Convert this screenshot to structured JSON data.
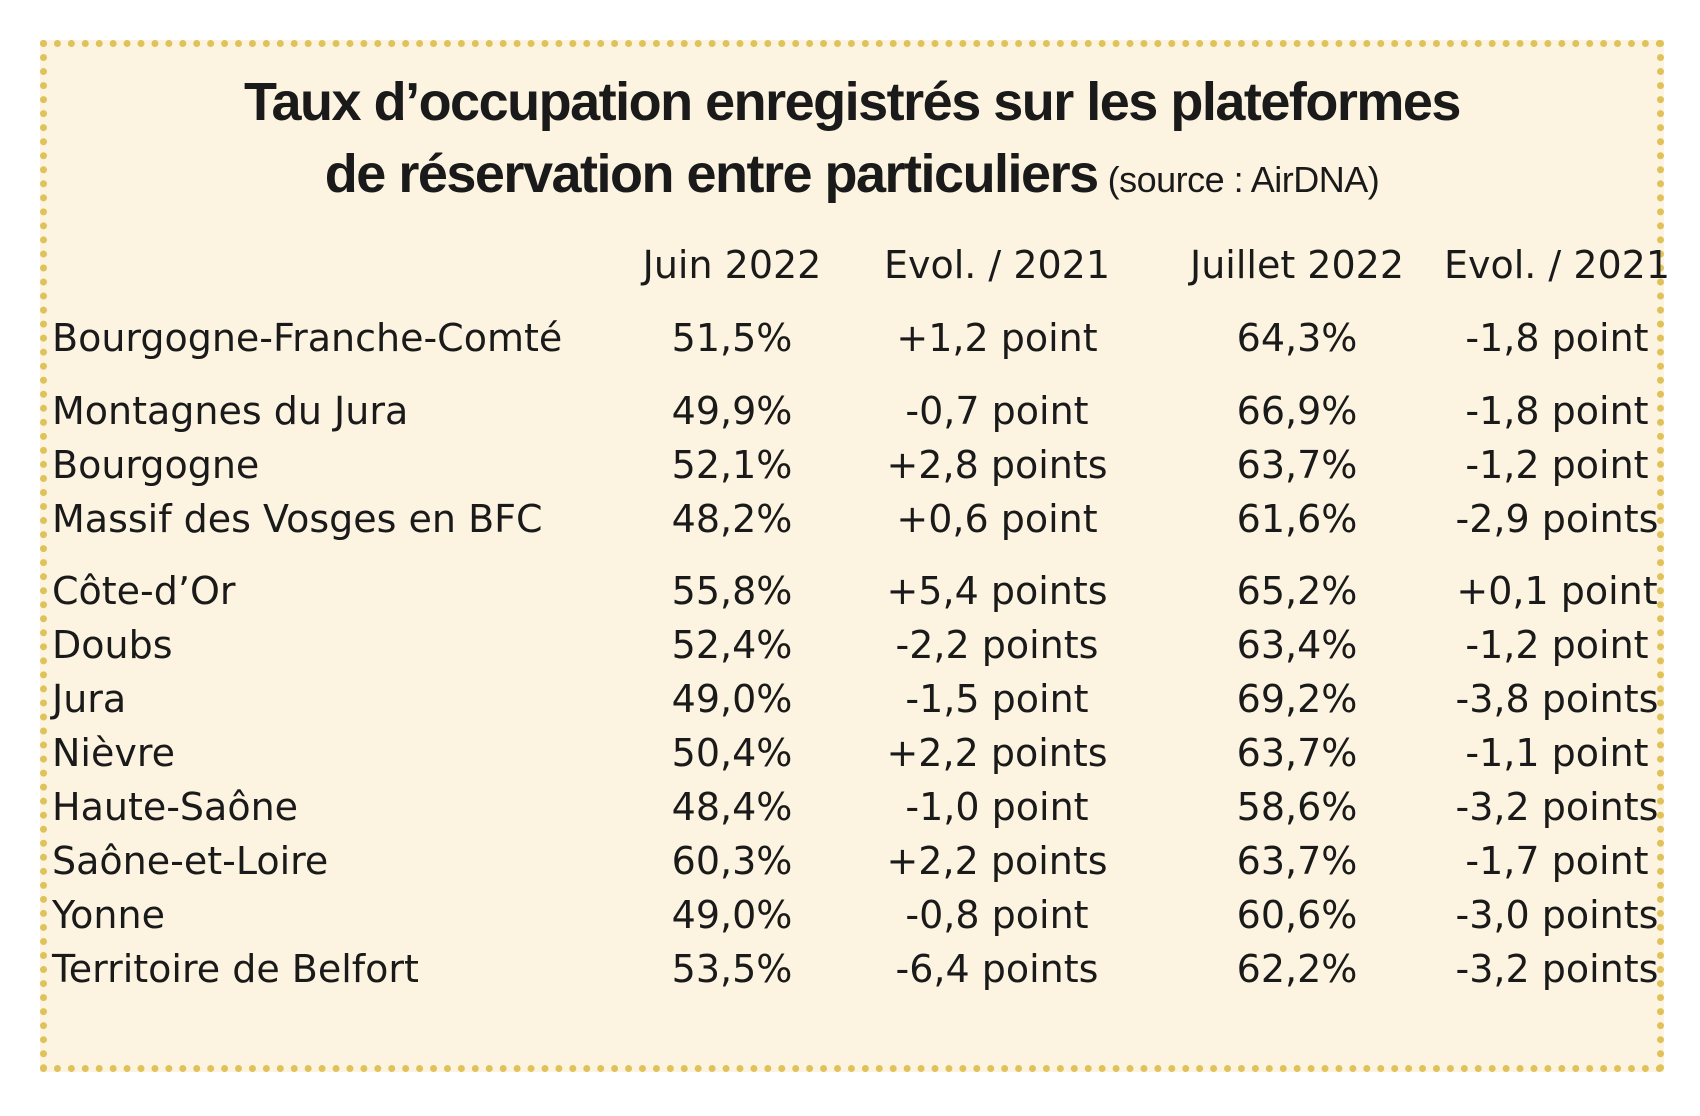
{
  "chart_data": {
    "type": "table",
    "title": "Taux d’occupation enregistrés sur les plateformes de réservation entre particuliers",
    "title_line1": "Taux d’occupation enregistrés sur les plateformes",
    "title_line2": "de réservation entre particuliers",
    "source": "(source : AirDNA)",
    "columns": [
      "Juin 2022",
      "Evol. / 2021",
      "Juillet 2022",
      "Evol. / 2021"
    ],
    "rows": [
      {
        "label": "Bourgogne-Franche-Comté",
        "juin": "51,5%",
        "evol_juin": "+1,2 point",
        "juillet": "64,3%",
        "evol_juillet": "-1,8 point"
      },
      {
        "label": "Montagnes du  Jura",
        "juin": "49,9%",
        "evol_juin": "-0,7 point",
        "juillet": "66,9%",
        "evol_juillet": "-1,8 point"
      },
      {
        "label": "Bourgogne",
        "juin": "52,1%",
        "evol_juin": "+2,8 points",
        "juillet": "63,7%",
        "evol_juillet": "-1,2 point"
      },
      {
        "label": "Massif des Vosges en BFC",
        "juin": "48,2%",
        "evol_juin": "+0,6 point",
        "juillet": "61,6%",
        "evol_juillet": "-2,9 points"
      },
      {
        "label": "Côte-d’Or",
        "juin": "55,8%",
        "evol_juin": "+5,4 points",
        "juillet": "65,2%",
        "evol_juillet": "+0,1 point"
      },
      {
        "label": "Doubs",
        "juin": "52,4%",
        "evol_juin": "-2,2 points",
        "juillet": "63,4%",
        "evol_juillet": "-1,2 point"
      },
      {
        "label": "Jura",
        "juin": "49,0%",
        "evol_juin": "-1,5 point",
        "juillet": "69,2%",
        "evol_juillet": "-3,8 points"
      },
      {
        "label": "Nièvre",
        "juin": "50,4%",
        "evol_juin": "+2,2 points",
        "juillet": "63,7%",
        "evol_juillet": "-1,1 point"
      },
      {
        "label": "Haute-Saône",
        "juin": "48,4%",
        "evol_juin": "-1,0 point",
        "juillet": "58,6%",
        "evol_juillet": "-3,2 points"
      },
      {
        "label": "Saône-et-Loire",
        "juin": "60,3%",
        "evol_juin": "+2,2 points",
        "juillet": "63,7%",
        "evol_juillet": "-1,7 point"
      },
      {
        "label": "Yonne",
        "juin": "49,0%",
        "evol_juin": "-0,8 point",
        "juillet": "60,6%",
        "evol_juillet": "-3,0 points"
      },
      {
        "label": "Territoire de Belfort",
        "juin": "53,5%",
        "evol_juin": "-6,4 points",
        "juillet": "62,2%",
        "evol_juillet": "-3,2 points"
      }
    ]
  },
  "colors": {
    "background": "#fcf4e1",
    "border": "#e0c25a",
    "text": "#1a1a1a"
  }
}
